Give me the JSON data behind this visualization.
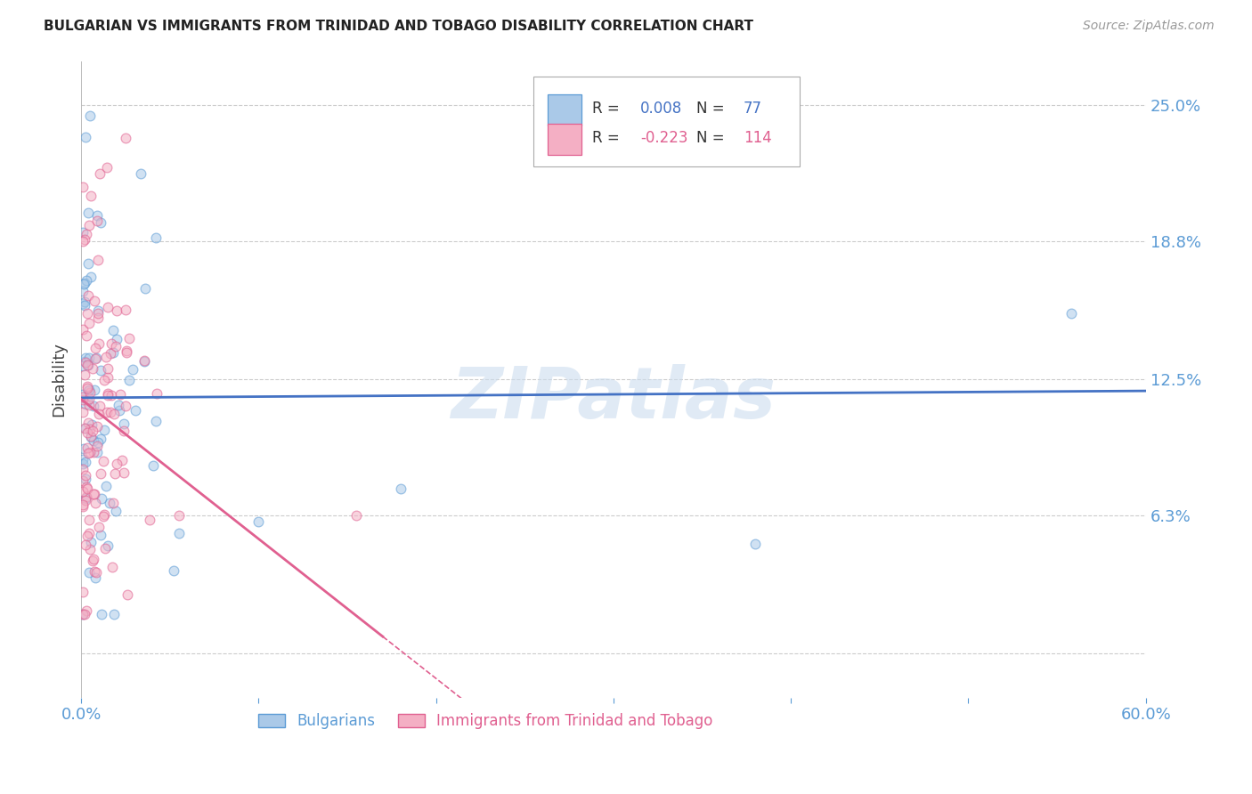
{
  "title": "BULGARIAN VS IMMIGRANTS FROM TRINIDAD AND TOBAGO DISABILITY CORRELATION CHART",
  "source": "Source: ZipAtlas.com",
  "ylabel": "Disability",
  "watermark": "ZIPatlas",
  "xlim": [
    0.0,
    0.6
  ],
  "ylim": [
    -0.02,
    0.27
  ],
  "xticks": [
    0.0,
    0.1,
    0.2,
    0.3,
    0.4,
    0.5,
    0.6
  ],
  "xticklabels": [
    "0.0%",
    "",
    "",
    "",
    "",
    "",
    "60.0%"
  ],
  "ytick_vals": [
    0.0,
    0.063,
    0.125,
    0.188,
    0.25
  ],
  "yticklabels": [
    "",
    "6.3%",
    "12.5%",
    "18.8%",
    "25.0%"
  ],
  "tick_color": "#5b9bd5",
  "grid_color": "#cccccc",
  "background_color": "#ffffff",
  "s1_label": "Bulgarians",
  "s1_R": 0.008,
  "s1_N": 77,
  "s1_face": "#aac9e8",
  "s1_edge": "#5b9bd5",
  "s1_alpha": 0.55,
  "s1_ms": 60,
  "s2_label": "Immigrants from Trinidad and Tobago",
  "s2_R": -0.223,
  "s2_N": 114,
  "s2_face": "#f4afc4",
  "s2_edge": "#e06090",
  "s2_alpha": 0.55,
  "s2_ms": 60,
  "trend1_color": "#4472c4",
  "trend1_lw": 2.0,
  "trend2_color": "#e06090",
  "trend2_lw": 2.0,
  "legend_R1_color": "#4472c4",
  "legend_R2_color": "#e06090",
  "legend_N1_color": "#4472c4",
  "legend_N2_color": "#e06090"
}
